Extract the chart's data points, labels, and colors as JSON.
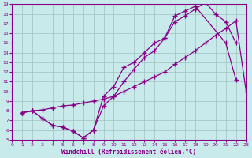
{
  "bg_color": "#c8eaea",
  "line_color": "#880088",
  "grid_color": "#a0c0c0",
  "xlabel": "Windchill (Refroidissement éolien,°C)",
  "xlim": [
    0,
    23
  ],
  "ylim": [
    5,
    19
  ],
  "yticks": [
    5,
    6,
    7,
    8,
    9,
    10,
    11,
    12,
    13,
    14,
    15,
    16,
    17,
    18,
    19
  ],
  "xticks": [
    0,
    1,
    2,
    3,
    4,
    5,
    6,
    7,
    8,
    9,
    10,
    11,
    12,
    13,
    14,
    15,
    16,
    17,
    18,
    19,
    20,
    21,
    22,
    23
  ],
  "line1_x": [
    1,
    2,
    3,
    4,
    5,
    6,
    7,
    8,
    9,
    10,
    11,
    12,
    13,
    14,
    15,
    16,
    17,
    18,
    21,
    22
  ],
  "line1_y": [
    7.8,
    8.0,
    7.2,
    6.5,
    6.3,
    5.9,
    5.2,
    6.0,
    9.5,
    10.5,
    12.5,
    13.0,
    14.0,
    15.0,
    15.5,
    17.8,
    18.3,
    18.8,
    15.0,
    11.2
  ],
  "line2_x": [
    1,
    2,
    3,
    4,
    5,
    6,
    7,
    8,
    9,
    10,
    11,
    12,
    13,
    14,
    15,
    16,
    17,
    18,
    19,
    20,
    21,
    22,
    23
  ],
  "line2_y": [
    7.8,
    8.0,
    8.1,
    8.3,
    8.5,
    8.6,
    8.8,
    9.0,
    9.2,
    9.5,
    10.0,
    10.5,
    11.0,
    11.5,
    12.0,
    12.8,
    13.5,
    14.2,
    15.0,
    15.8,
    16.5,
    17.3,
    10.0
  ],
  "line3_x": [
    1,
    2,
    3,
    4,
    5,
    6,
    7,
    8,
    9,
    10,
    11,
    12,
    13,
    14,
    15,
    16,
    17,
    18,
    19,
    20,
    21,
    22
  ],
  "line3_y": [
    7.8,
    8.0,
    7.2,
    6.5,
    6.3,
    5.9,
    5.2,
    6.0,
    8.5,
    9.5,
    11.0,
    12.3,
    13.5,
    14.2,
    15.5,
    17.2,
    17.8,
    18.5,
    19.2,
    18.0,
    17.2,
    15.0
  ]
}
